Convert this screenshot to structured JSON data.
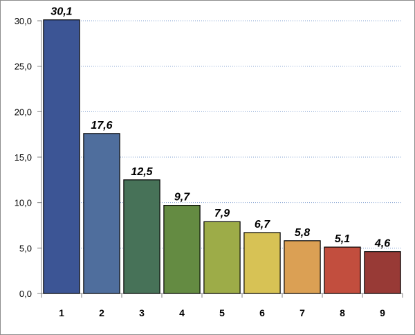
{
  "chart_data": {
    "type": "bar",
    "title": "",
    "xlabel": "",
    "ylabel": "",
    "categories": [
      "1",
      "2",
      "3",
      "4",
      "5",
      "6",
      "7",
      "8",
      "9"
    ],
    "values": [
      30.1,
      17.6,
      12.5,
      9.7,
      7.9,
      6.7,
      5.8,
      5.1,
      4.6
    ],
    "data_labels": [
      "30,1",
      "17,6",
      "12,5",
      "9,7",
      "7,9",
      "6,7",
      "5,8",
      "5,1",
      "4,6"
    ],
    "ylim": [
      0,
      30
    ],
    "yticks": [
      0,
      5,
      10,
      15,
      20,
      25,
      30
    ],
    "ytick_labels": [
      "0,0",
      "5,0",
      "10,0",
      "15,0",
      "20,0",
      "25,0",
      "30,0"
    ],
    "grid": "horizontal dotted",
    "legend": "none",
    "colors": [
      "#3c5595",
      "#4f6e9d",
      "#477258",
      "#648b42",
      "#9dac48",
      "#d7c255",
      "#dba054",
      "#c24e3e",
      "#983a36"
    ]
  }
}
